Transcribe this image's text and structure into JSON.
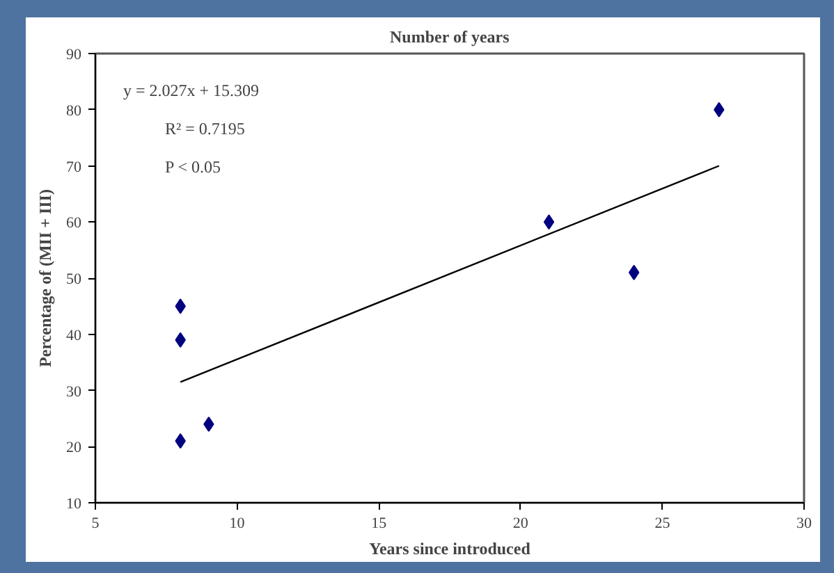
{
  "chart_data": {
    "type": "scatter",
    "title": "Number of years",
    "xlabel": "Years since introduced",
    "ylabel": "Percentage of (MII + III)",
    "xlim": [
      5,
      30
    ],
    "xticks": [
      5,
      10,
      15,
      20,
      25,
      30
    ],
    "ylim": [
      10,
      90
    ],
    "yticks": [
      10,
      20,
      30,
      40,
      50,
      60,
      70,
      80,
      90
    ],
    "grid": false,
    "series": [
      {
        "marker": "diamond",
        "color": "#000080",
        "x": [
          8,
          8,
          8,
          9,
          21,
          24,
          27
        ],
        "values": [
          45,
          39,
          21,
          24,
          60,
          51,
          80
        ]
      },
      {
        "type": "line",
        "color": "#000000",
        "x": [
          8,
          27
        ],
        "values": [
          31.5,
          70.0
        ]
      }
    ],
    "annotations": [
      "y = 2.027x + 15.309",
      "R² = 0.7195",
      "P < 0.05"
    ]
  }
}
